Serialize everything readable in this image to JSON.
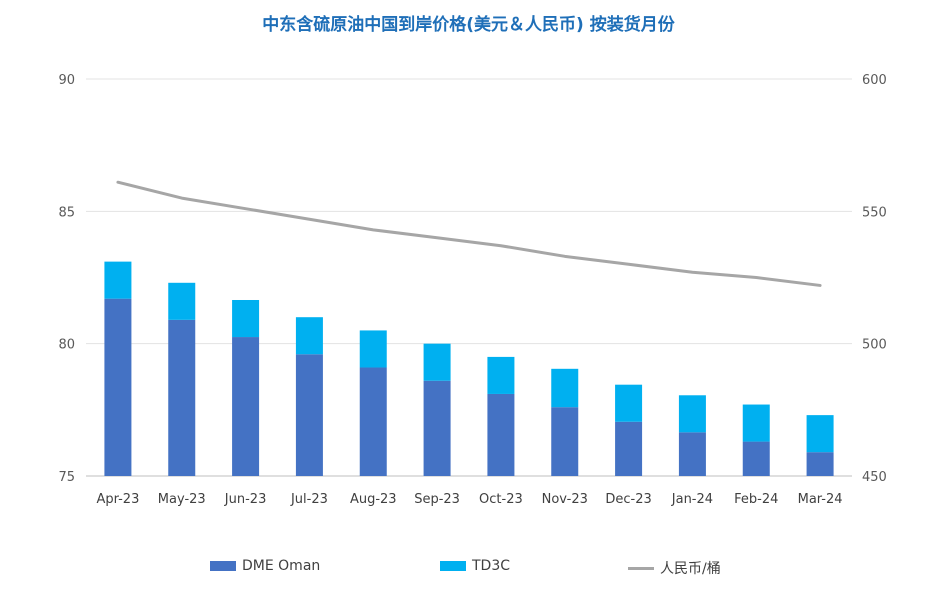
{
  "chart_data": {
    "type": "bar",
    "title": "中东含硫原油中国到岸价格(美元＆人民币) 按装货月份",
    "categories": [
      "Apr-23",
      "May-23",
      "Jun-23",
      "Jul-23",
      "Aug-23",
      "Sep-23",
      "Oct-23",
      "Nov-23",
      "Dec-23",
      "Jan-24",
      "Feb-24",
      "Mar-24"
    ],
    "series": [
      {
        "name": "DME Oman",
        "type": "stacked-bar",
        "axis": "left",
        "color": "#4472c4",
        "values": [
          81.7,
          80.9,
          80.25,
          79.6,
          79.1,
          78.6,
          78.1,
          77.6,
          77.05,
          76.65,
          76.3,
          75.9
        ]
      },
      {
        "name": "TD3C",
        "type": "stacked-bar",
        "axis": "left",
        "color": "#00b0f0",
        "values": [
          1.4,
          1.4,
          1.4,
          1.4,
          1.4,
          1.4,
          1.4,
          1.45,
          1.4,
          1.4,
          1.4,
          1.4
        ]
      },
      {
        "name": "人民币/桶",
        "type": "line",
        "axis": "right",
        "color": "#a6a6a6",
        "values": [
          561,
          555,
          551,
          547,
          543,
          540,
          537,
          533,
          530,
          527,
          525,
          522
        ]
      }
    ],
    "y_left": {
      "min": 75,
      "max": 90,
      "ticks": [
        75,
        80,
        85,
        90
      ]
    },
    "y_right": {
      "min": 450,
      "max": 600,
      "ticks": [
        450,
        500,
        550,
        600
      ]
    },
    "grid": true,
    "legend_position": "bottom"
  }
}
